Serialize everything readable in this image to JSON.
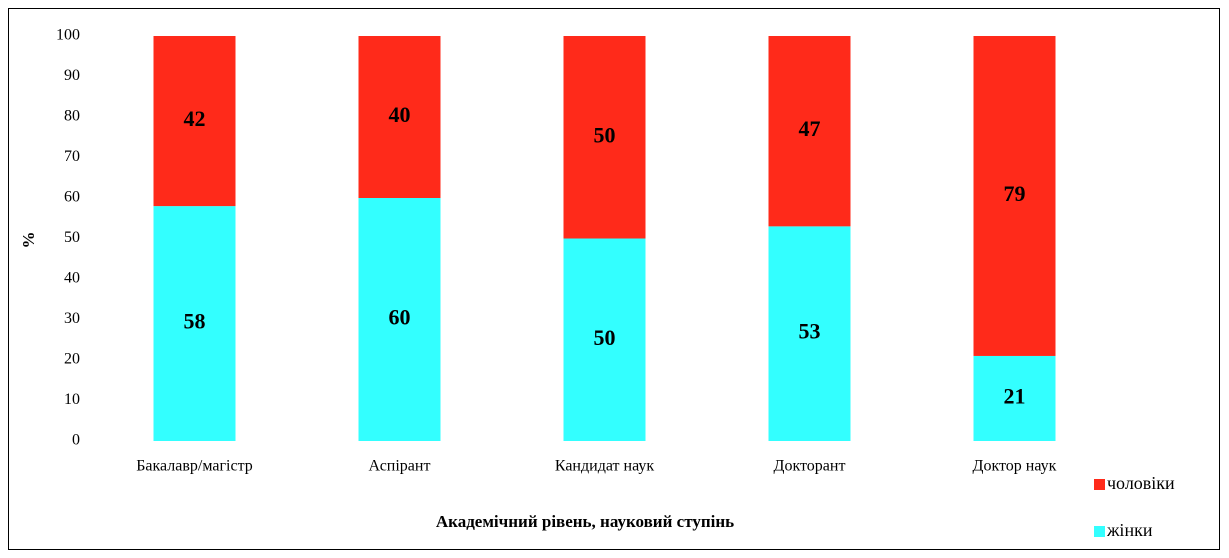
{
  "chart_data": {
    "type": "bar",
    "stacked": true,
    "x_label": "Академічний рівень, науковий ступінь",
    "y_label": "%",
    "categories": [
      "Бакалавр/магістр",
      "Аспірант",
      "Кандидат наук",
      "Докторант",
      "Доктор наук"
    ],
    "series": [
      {
        "name": "жінки",
        "color": "#33ffff",
        "values": [
          58,
          60,
          50,
          53,
          21
        ]
      },
      {
        "name": "чоловіки",
        "color": "#ff2a1a",
        "values": [
          42,
          40,
          50,
          47,
          79
        ]
      }
    ],
    "ylim": [
      0,
      100
    ],
    "yticks": [
      0,
      10,
      20,
      30,
      40,
      50,
      60,
      70,
      80,
      90,
      100
    ],
    "grid": false,
    "legend": "right"
  }
}
